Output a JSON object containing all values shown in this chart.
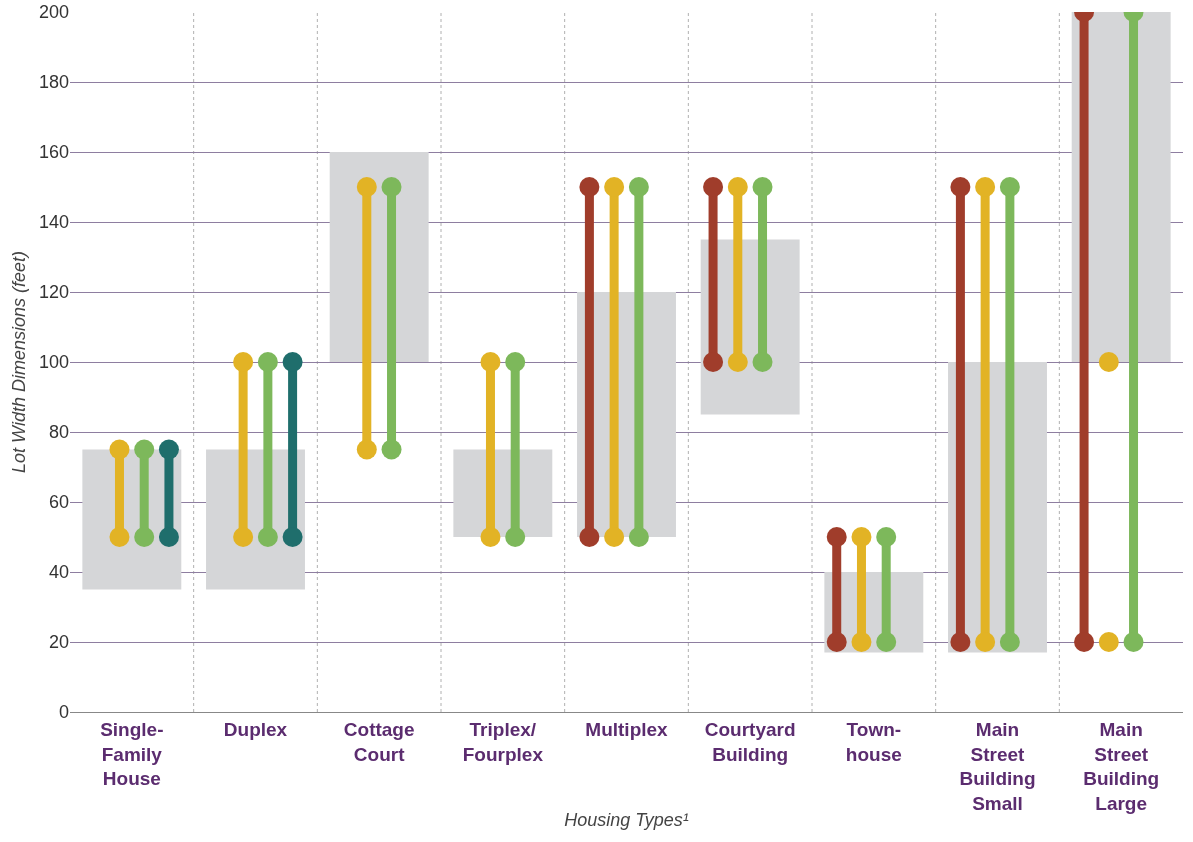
{
  "chart_data": {
    "type": "bar",
    "xlabel": "Housing Types¹",
    "ylabel": "Lot Width Dimensions (feet)",
    "categories": [
      "Single-\nFamily\nHouse",
      "Duplex",
      "Cottage\nCourt",
      "Triplex/\nFourplex",
      "Multiplex",
      "Courtyard\nBuilding",
      "Town-\nhouse",
      "Main\nStreet\nBuilding\nSmall",
      "Main\nStreet\nBuilding\nLarge"
    ],
    "ylim": [
      0,
      200
    ],
    "yticks": [
      0,
      20,
      40,
      60,
      80,
      100,
      120,
      140,
      160,
      180,
      200
    ],
    "grid": "y",
    "series": [
      {
        "color": "#d5d6d8",
        "base": [
          35,
          35,
          100,
          50,
          50,
          85,
          17,
          17,
          100
        ],
        "values": [
          40,
          40,
          60,
          25,
          70,
          50,
          23,
          83,
          100
        ]
      },
      {
        "type": "line",
        "color": "#a03d2b",
        "marker": "circle",
        "x": [
          "Multiplex",
          "Multiplex",
          null,
          "Courtyard\nBuilding",
          "Courtyard\nBuilding",
          null,
          "Town-\nhouse",
          "Town-\nhouse",
          null,
          "Main\nStreet\nBuilding\nSmall",
          "Main\nStreet\nBuilding\nSmall",
          null,
          "Main\nStreet\nBuilding\nLarge",
          "Main\nStreet\nBuilding\nLarge"
        ],
        "values": [
          50,
          150,
          null,
          100,
          150,
          null,
          20,
          50,
          null,
          20,
          150,
          null,
          20,
          200
        ]
      },
      {
        "type": "line",
        "color": "#e2b325",
        "marker": "circle",
        "x": [
          "Single-\nFamily\nHouse",
          "Single-\nFamily\nHouse",
          null,
          "Duplex",
          "Duplex",
          null,
          "Cottage\nCourt",
          "Cottage\nCourt",
          null,
          "Triplex/\nFourplex",
          "Triplex/\nFourplex",
          null,
          "Multiplex",
          "Multiplex",
          null,
          "Courtyard\nBuilding",
          "Courtyard\nBuilding",
          null,
          "Town-\nhouse",
          "Town-\nhouse",
          null,
          "Main\nStreet\nBuilding\nSmall",
          "Main\nStreet\nBuilding\nSmall"
        ],
        "values": [
          50,
          75,
          null,
          50,
          100,
          null,
          75,
          150,
          null,
          50,
          100,
          null,
          50,
          150,
          null,
          100,
          150,
          null,
          20,
          50,
          null,
          20,
          150
        ]
      },
      {
        "type": "scatter",
        "color": "#e2b325",
        "marker": "circle",
        "x": [
          "Main\nStreet\nBuilding\nLarge",
          "Main\nStreet\nBuilding\nLarge"
        ],
        "values": [
          20,
          100
        ]
      },
      {
        "type": "line",
        "color": "#7db85b",
        "marker": "circle",
        "x": [
          "Single-\nFamily\nHouse",
          "Single-\nFamily\nHouse",
          null,
          "Duplex",
          "Duplex",
          null,
          "Cottage\nCourt",
          "Cottage\nCourt",
          null,
          "Triplex/\nFourplex",
          "Triplex/\nFourplex",
          null,
          "Multiplex",
          "Multiplex",
          null,
          "Courtyard\nBuilding",
          "Courtyard\nBuilding",
          null,
          "Town-\nhouse",
          "Town-\nhouse",
          null,
          "Main\nStreet\nBuilding\nSmall",
          "Main\nStreet\nBuilding\nSmall",
          null,
          "Main\nStreet\nBuilding\nLarge",
          "Main\nStreet\nBuilding\nLarge"
        ],
        "values": [
          50,
          75,
          null,
          50,
          100,
          null,
          75,
          150,
          null,
          50,
          100,
          null,
          50,
          150,
          null,
          100,
          150,
          null,
          20,
          50,
          null,
          20,
          150,
          null,
          20,
          200
        ]
      },
      {
        "type": "line",
        "color": "#1f6e6c",
        "marker": "circle",
        "x": [
          "Single-\nFamily\nHouse",
          "Single-\nFamily\nHouse",
          null,
          "Duplex",
          "Duplex"
        ],
        "values": [
          50,
          75,
          null,
          50,
          100
        ]
      }
    ]
  }
}
